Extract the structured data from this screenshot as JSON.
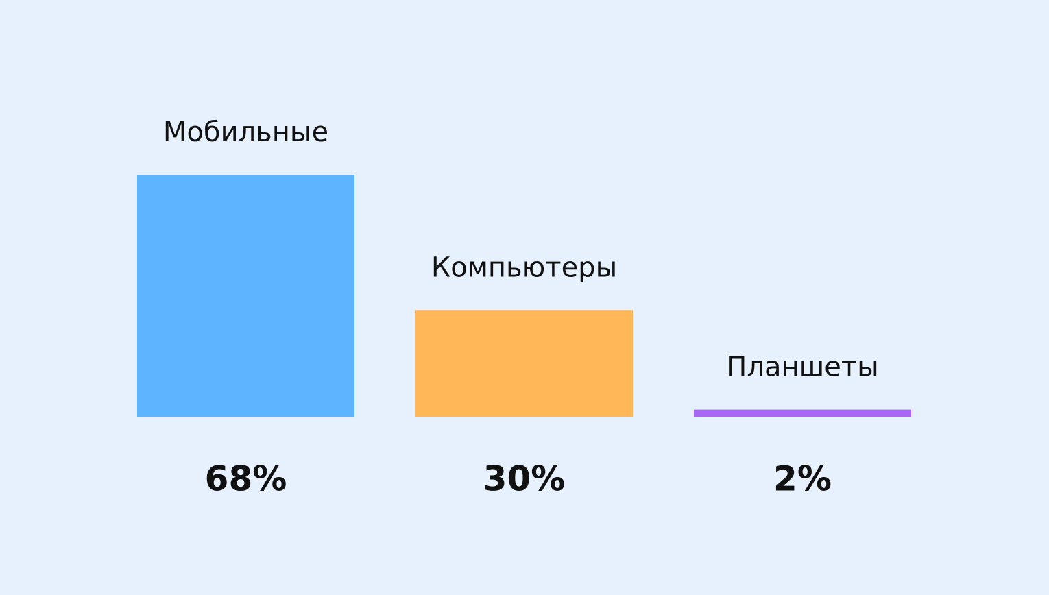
{
  "chart_data": {
    "type": "bar",
    "categories": [
      "Мобильные",
      "Компьютеры",
      "Планшеты"
    ],
    "values": [
      68,
      30,
      2
    ],
    "value_labels": [
      "68%",
      "30%",
      "2%"
    ],
    "colors": [
      "#5eb4fe",
      "#ffb757",
      "#a967f5"
    ]
  }
}
